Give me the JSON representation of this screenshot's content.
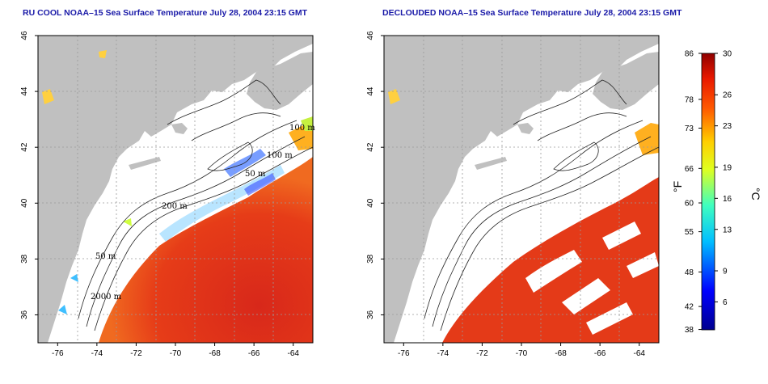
{
  "panels": [
    {
      "id": "left",
      "title": "RU COOL NOAA–15 Sea Surface Temperature July 28, 2004 23:15 GMT"
    },
    {
      "id": "right",
      "title": "DECLOUDED NOAA–15 Sea Surface Temperature July 28, 2004 23:15 GMT"
    }
  ],
  "axes": {
    "lon_ticks": [
      "-76",
      "-74",
      "-72",
      "-70",
      "-68",
      "-66",
      "-64"
    ],
    "lat_ticks": [
      "46",
      "44",
      "42",
      "40",
      "38",
      "36"
    ],
    "lon_range": [
      -77,
      -63
    ],
    "lat_range": [
      35,
      46
    ]
  },
  "contours": {
    "labels": [
      "100 m",
      "100 m",
      "50 m",
      "200 m",
      "50 m",
      "2000 m"
    ]
  },
  "colorbar": {
    "fahrenheit_ticks": [
      "86",
      "78",
      "73",
      "66",
      "60",
      "55",
      "48",
      "42",
      "38"
    ],
    "celsius_ticks": [
      "30",
      "26",
      "23",
      "19",
      "16",
      "13",
      "9",
      "6"
    ],
    "fahrenheit_label": "°F",
    "celsius_label": "°C",
    "range_c": [
      3.3,
      30
    ]
  },
  "colors": {
    "land": "#c0c0c0",
    "ocean_cloud": "#ffffff",
    "warm": "#e83a18",
    "title": "#1a1aa8"
  }
}
